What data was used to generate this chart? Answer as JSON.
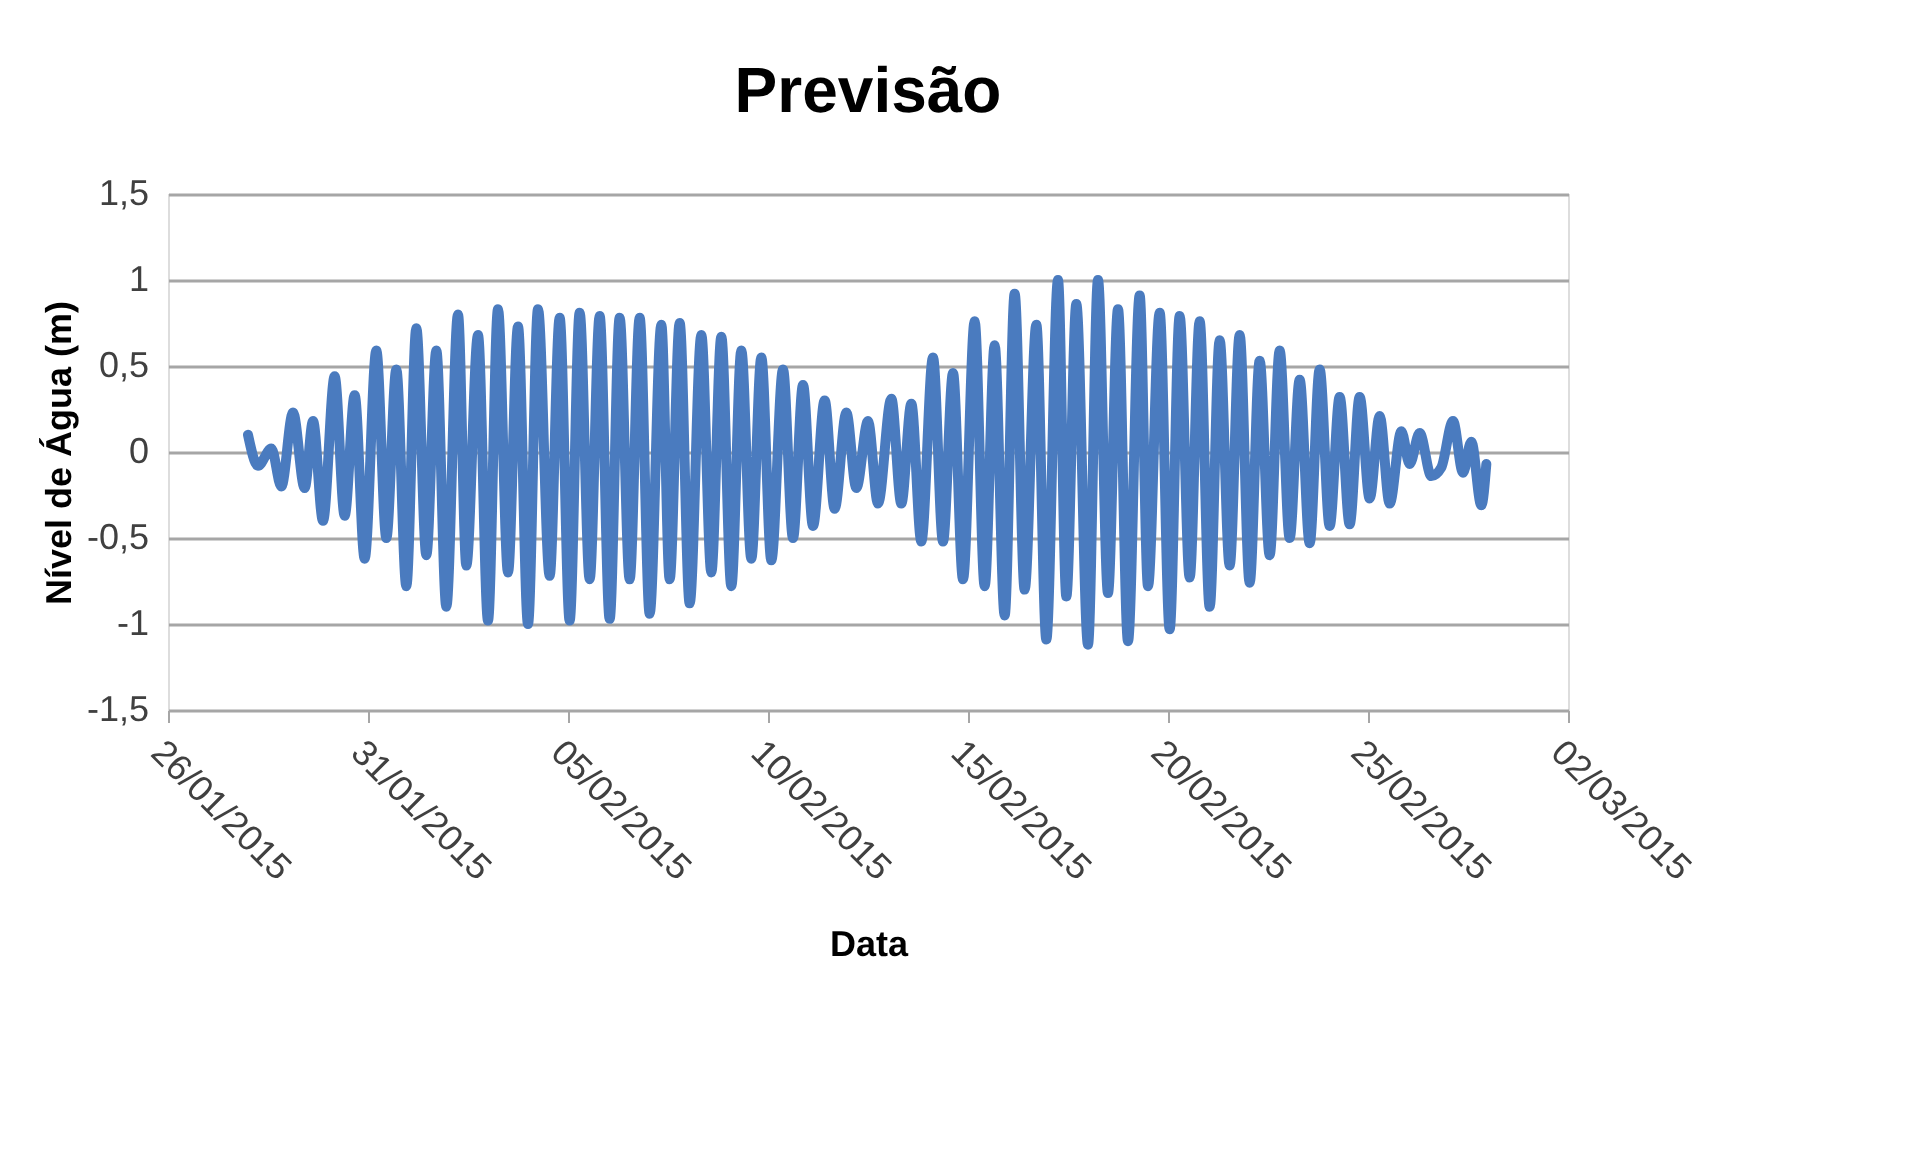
{
  "chart_data": {
    "type": "line",
    "title": "Previsão",
    "xlabel": "Data",
    "ylabel": "Nível de Água (m)",
    "xlim": [
      "2015-01-26",
      "2015-03-02"
    ],
    "xticks": [
      {
        "value": "2015-01-26",
        "label": "26/01/2015"
      },
      {
        "value": "2015-01-31",
        "label": "31/01/2015"
      },
      {
        "value": "2015-02-05",
        "label": "05/02/2015"
      },
      {
        "value": "2015-02-10",
        "label": "10/02/2015"
      },
      {
        "value": "2015-02-15",
        "label": "15/02/2015"
      },
      {
        "value": "2015-02-20",
        "label": "20/02/2015"
      },
      {
        "value": "2015-02-25",
        "label": "25/02/2015"
      },
      {
        "value": "2015-03-02",
        "label": "02/03/2015"
      }
    ],
    "ylim": [
      -1.5,
      1.5
    ],
    "yticks": [
      {
        "value": -1.5,
        "label": "-1,5"
      },
      -1,
      {
        "value": -0.5,
        "label": "-0,5"
      },
      0,
      {
        "value": 0.5,
        "label": "0,5"
      },
      1,
      {
        "value": 1.5,
        "label": "1,5"
      }
    ],
    "grid": "y",
    "marker": "none",
    "line_style": "solid",
    "series": [
      {
        "color": "#4a7bbf",
        "x": [
          "2015-01-28T00:00",
          "2015-01-28T06:00",
          "2015-01-28T14:00",
          "2015-01-28T20:00",
          "2015-01-29T03:00",
          "2015-01-29T10:00",
          "2015-01-29T15:00",
          "2015-01-29T21:00",
          "2015-01-30T04:00",
          "2015-01-30T10:00",
          "2015-01-30T16:00",
          "2015-01-30T22:00",
          "2015-01-31T05:00",
          "2015-01-31T11:00",
          "2015-01-31T17:00",
          "2015-01-31T23:00",
          "2015-02-01T05:00",
          "2015-02-01T11:00",
          "2015-02-01T17:00",
          "2015-02-01T23:00",
          "2015-02-02T06:00",
          "2015-02-02T11:00",
          "2015-02-02T18:00",
          "2015-02-03T00:00",
          "2015-02-03T06:00",
          "2015-02-03T12:00",
          "2015-02-03T18:00",
          "2015-02-04T00:00",
          "2015-02-04T06:00",
          "2015-02-04T13:00",
          "2015-02-04T19:00",
          "2015-02-05T01:00",
          "2015-02-05T07:00",
          "2015-02-05T13:00",
          "2015-02-05T19:00",
          "2015-02-06T01:00",
          "2015-02-06T07:00",
          "2015-02-06T13:00",
          "2015-02-06T19:00",
          "2015-02-07T01:00",
          "2015-02-07T08:00",
          "2015-02-07T13:00",
          "2015-02-07T19:00",
          "2015-02-08T01:00",
          "2015-02-08T08:00",
          "2015-02-08T14:00",
          "2015-02-08T20:00",
          "2015-02-09T02:00",
          "2015-02-09T08:00",
          "2015-02-09T14:00",
          "2015-02-09T20:00",
          "2015-02-10T02:00",
          "2015-02-10T09:00",
          "2015-02-10T15:00",
          "2015-02-10T21:00",
          "2015-02-11T03:00",
          "2015-02-11T10:00",
          "2015-02-11T16:00",
          "2015-02-11T23:00",
          "2015-02-12T05:00",
          "2015-02-12T12:00",
          "2015-02-12T18:00",
          "2015-02-13T02:00",
          "2015-02-13T08:00",
          "2015-02-13T14:00",
          "2015-02-13T20:00",
          "2015-02-14T03:00",
          "2015-02-14T09:00",
          "2015-02-14T15:00",
          "2015-02-14T21:00",
          "2015-02-15T04:00",
          "2015-02-15T10:00",
          "2015-02-15T16:00",
          "2015-02-15T22:00",
          "2015-02-16T04:00",
          "2015-02-16T10:00",
          "2015-02-16T17:00",
          "2015-02-16T23:00",
          "2015-02-17T06:00",
          "2015-02-17T11:00",
          "2015-02-17T17:00",
          "2015-02-18T00:00",
          "2015-02-18T06:00",
          "2015-02-18T12:00",
          "2015-02-18T18:00",
          "2015-02-19T00:00",
          "2015-02-19T07:00",
          "2015-02-19T12:00",
          "2015-02-19T19:00",
          "2015-02-20T01:00",
          "2015-02-20T07:00",
          "2015-02-20T13:00",
          "2015-02-20T19:00",
          "2015-02-21T01:00",
          "2015-02-21T07:00",
          "2015-02-21T13:00",
          "2015-02-21T19:00",
          "2015-02-22T01:00",
          "2015-02-22T07:00",
          "2015-02-22T13:00",
          "2015-02-22T19:00",
          "2015-02-23T01:00",
          "2015-02-23T07:00",
          "2015-02-23T13:00",
          "2015-02-23T19:00",
          "2015-02-24T01:00",
          "2015-02-24T07:00",
          "2015-02-24T13:00",
          "2015-02-24T19:00",
          "2015-02-25T01:00",
          "2015-02-25T07:00",
          "2015-02-25T13:00",
          "2015-02-25T20:00",
          "2015-02-26T01:00",
          "2015-02-26T07:00",
          "2015-02-26T14:00",
          "2015-02-26T20:00",
          "2015-02-27T03:00",
          "2015-02-27T09:00",
          "2015-02-27T14:00",
          "2015-02-27T20:00",
          "2015-02-27T23:00"
        ],
        "values": [
          0.1,
          -0.08,
          0.02,
          -0.2,
          0.23,
          -0.21,
          0.18,
          -0.4,
          0.44,
          -0.37,
          0.33,
          -0.62,
          0.59,
          -0.5,
          0.48,
          -0.78,
          0.72,
          -0.6,
          0.59,
          -0.9,
          0.8,
          -0.66,
          0.68,
          -0.98,
          0.83,
          -0.7,
          0.73,
          -1.0,
          0.83,
          -0.72,
          0.78,
          -0.98,
          0.81,
          -0.74,
          0.79,
          -0.97,
          0.78,
          -0.74,
          0.78,
          -0.94,
          0.74,
          -0.74,
          0.75,
          -0.88,
          0.68,
          -0.7,
          0.67,
          -0.78,
          0.59,
          -0.62,
          0.55,
          -0.63,
          0.48,
          -0.5,
          0.39,
          -0.43,
          0.3,
          -0.33,
          0.23,
          -0.21,
          0.18,
          -0.3,
          0.31,
          -0.3,
          0.28,
          -0.52,
          0.55,
          -0.52,
          0.46,
          -0.74,
          0.76,
          -0.78,
          0.62,
          -0.95,
          0.92,
          -0.8,
          0.74,
          -1.09,
          1.0,
          -0.84,
          0.86,
          -1.12,
          1.0,
          -0.82,
          0.83,
          -1.1,
          0.91,
          -0.78,
          0.81,
          -1.03,
          0.79,
          -0.73,
          0.76,
          -0.9,
          0.65,
          -0.66,
          0.68,
          -0.76,
          0.53,
          -0.6,
          0.59,
          -0.5,
          0.42,
          -0.53,
          0.48,
          -0.43,
          0.32,
          -0.42,
          0.32,
          -0.27,
          0.21,
          -0.3,
          0.12,
          -0.07,
          0.11,
          -0.14,
          -0.09,
          0.18,
          -0.12,
          0.06,
          -0.31,
          -0.07
        ]
      }
    ]
  }
}
